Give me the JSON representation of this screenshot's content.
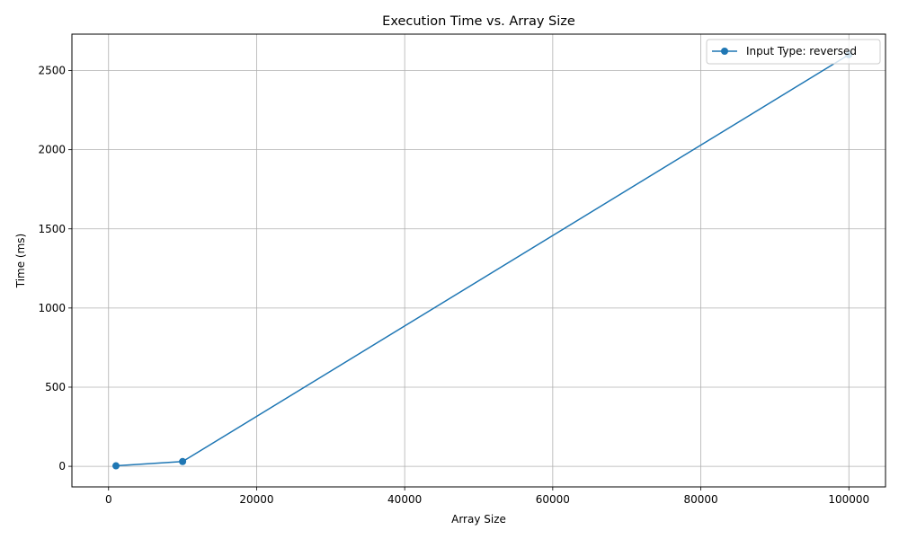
{
  "chart_data": {
    "type": "line",
    "title": "Execution Time vs. Array Size",
    "xlabel": "Array Size",
    "ylabel": "Time (ms)",
    "xlim": [
      -4950,
      104950
    ],
    "ylim": [
      -130,
      2730
    ],
    "xticks": [
      0,
      20000,
      40000,
      60000,
      80000,
      100000
    ],
    "yticks": [
      0,
      500,
      1000,
      1500,
      2000,
      2500
    ],
    "grid": true,
    "legend_position": "top-right",
    "series": [
      {
        "name": "Input Type: reversed",
        "color": "#1f77b4",
        "marker": "circle",
        "x": [
          1000,
          10000,
          100000
        ],
        "y": [
          3,
          30,
          2600
        ]
      }
    ]
  }
}
